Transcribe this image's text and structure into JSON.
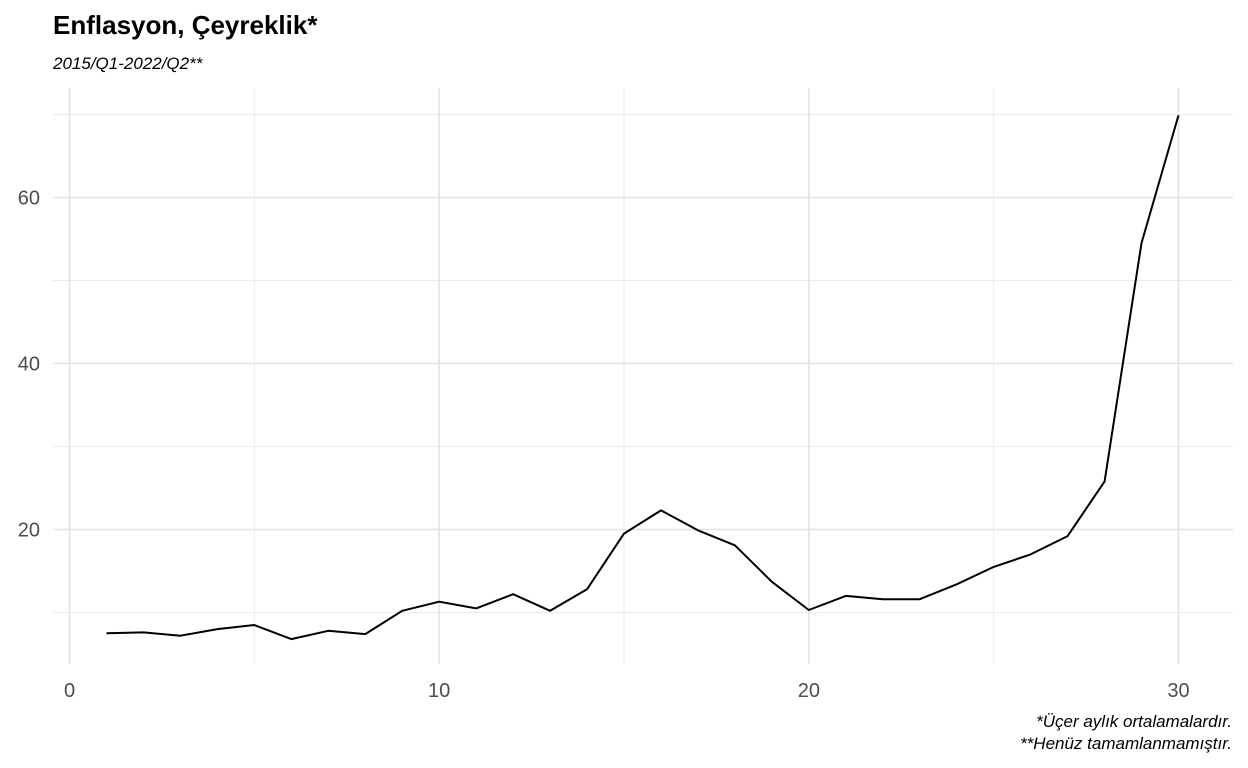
{
  "chart_data": {
    "type": "line",
    "title": "Enflasyon, Çeyreklik*",
    "subtitle": "2015/Q1-2022/Q2**",
    "captions": [
      "*Üçer aylık ortalamalardır.",
      "**Henüz tamamlanmamıştır."
    ],
    "xlabel": "",
    "ylabel": "",
    "xlim": [
      0,
      31
    ],
    "ylim": [
      4,
      72
    ],
    "x_ticks": [
      0,
      10,
      20,
      30
    ],
    "y_ticks": [
      20,
      40,
      60
    ],
    "grid": true,
    "line_color": "#000000",
    "x": [
      1,
      2,
      3,
      4,
      5,
      6,
      7,
      8,
      9,
      10,
      11,
      12,
      13,
      14,
      15,
      16,
      17,
      18,
      19,
      20,
      21,
      22,
      23,
      24,
      25,
      26,
      27,
      28,
      29,
      30
    ],
    "values": [
      7.5,
      7.6,
      7.2,
      8.0,
      8.5,
      6.8,
      7.8,
      7.4,
      10.2,
      11.3,
      10.5,
      12.2,
      10.2,
      12.8,
      19.5,
      22.3,
      19.9,
      18.1,
      13.7,
      10.3,
      12.0,
      11.6,
      11.6,
      13.4,
      15.5,
      17.0,
      19.2,
      25.8,
      54.5,
      69.9
    ]
  }
}
